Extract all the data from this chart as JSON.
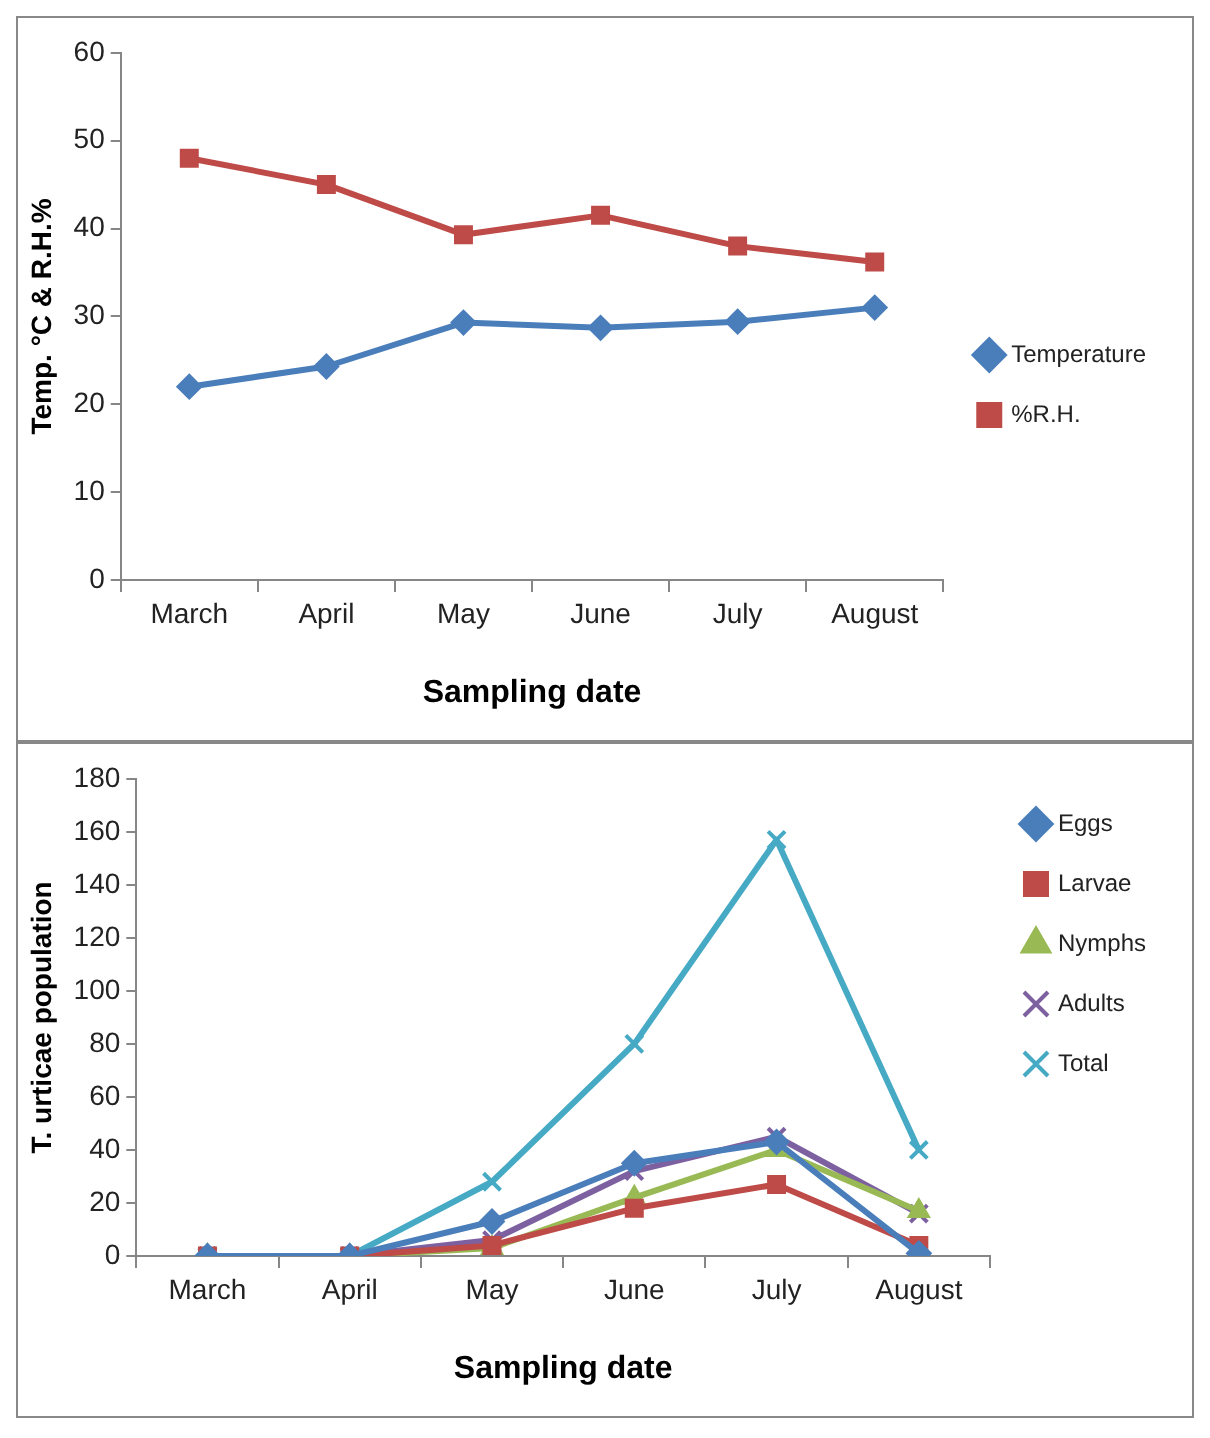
{
  "chart_data": [
    {
      "type": "line",
      "xlabel": "Sampling date",
      "ylabel": "Temp. °C & R.H.%",
      "categories": [
        "March",
        "April",
        "May",
        "June",
        "July",
        "August"
      ],
      "ylim": [
        0,
        60
      ],
      "yticks": [
        0,
        10,
        20,
        30,
        40,
        50,
        60
      ],
      "legend": "right",
      "series": [
        {
          "name": "Temperature",
          "color": "#4a7ebb",
          "marker": "diamond",
          "values": [
            22,
            24.3,
            29.3,
            28.7,
            29.4,
            31
          ]
        },
        {
          "name": "%R.H.",
          "color": "#be4b48",
          "marker": "square",
          "values": [
            48,
            45,
            39.3,
            41.5,
            38,
            36.2
          ]
        }
      ]
    },
    {
      "type": "line",
      "xlabel": "Sampling date",
      "ylabel": "T. urticae population",
      "categories": [
        "March",
        "April",
        "May",
        "June",
        "July",
        "August"
      ],
      "ylim": [
        0,
        180
      ],
      "yticks": [
        0,
        20,
        40,
        60,
        80,
        100,
        120,
        140,
        160,
        180
      ],
      "legend": "top right",
      "series": [
        {
          "name": "Eggs",
          "color": "#4a7ebb",
          "marker": "diamond",
          "values": [
            0,
            0,
            13,
            35,
            43,
            1
          ]
        },
        {
          "name": "Larvae",
          "color": "#be4b48",
          "marker": "square",
          "values": [
            0,
            0,
            4,
            18,
            27,
            4
          ]
        },
        {
          "name": "Nymphs",
          "color": "#98b954",
          "marker": "triangle",
          "values": [
            0,
            0,
            3,
            22,
            40,
            17
          ]
        },
        {
          "name": "Adults",
          "color": "#7d60a0",
          "marker": "cross",
          "values": [
            0,
            0,
            6,
            32,
            45,
            16
          ]
        },
        {
          "name": "Total",
          "color": "#46aac5",
          "marker": "cross",
          "values": [
            0,
            0,
            28,
            80,
            157,
            40
          ]
        }
      ]
    }
  ]
}
